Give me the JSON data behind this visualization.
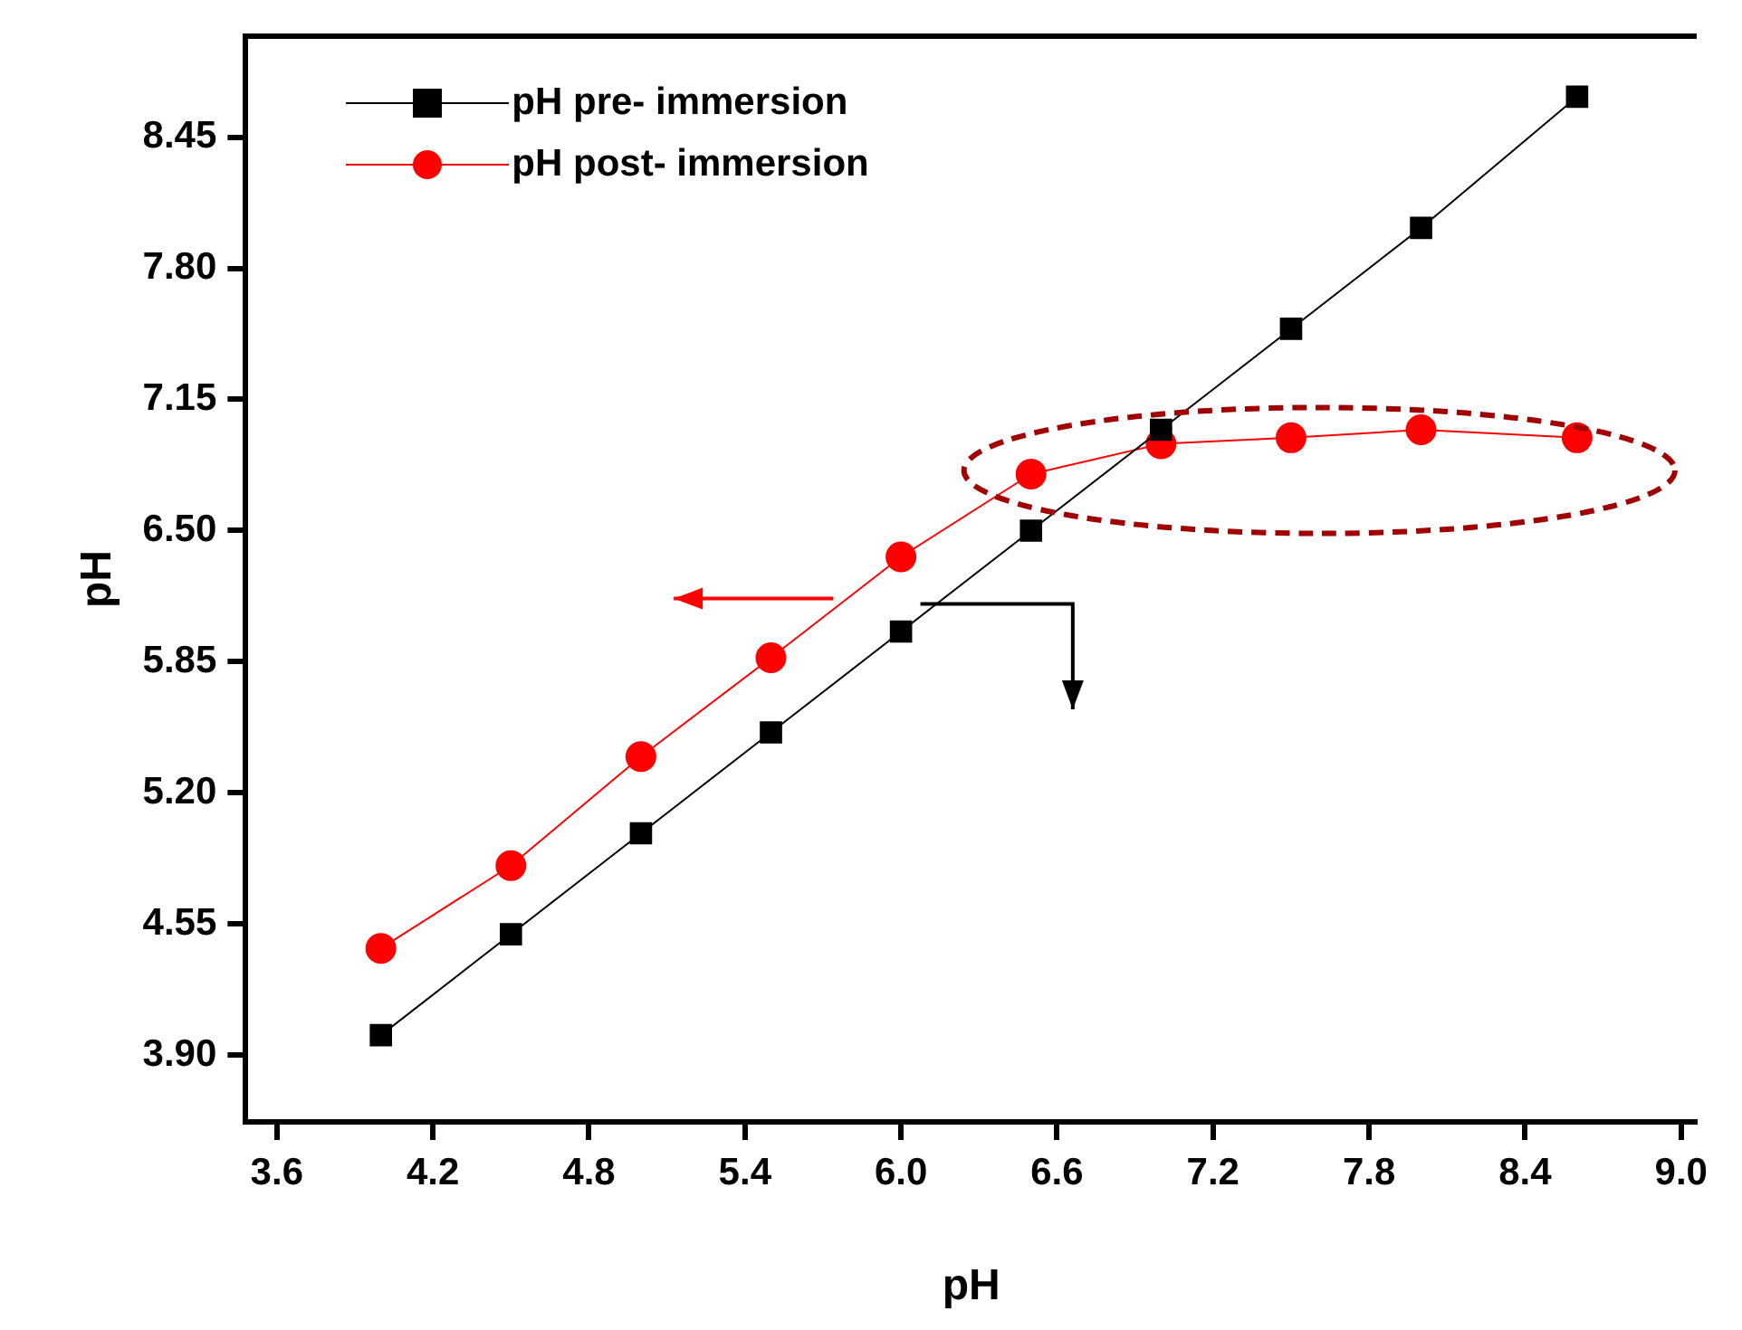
{
  "chart_data": {
    "type": "line",
    "xlabel": "pH",
    "ylabel": "pH",
    "x": [
      4.0,
      4.5,
      5.0,
      5.5,
      6.0,
      6.5,
      7.0,
      7.5,
      8.0,
      8.6
    ],
    "series": [
      {
        "name": "pH pre- immersion",
        "color": "#000000",
        "marker": "square",
        "values": [
          4.0,
          4.5,
          5.0,
          5.5,
          6.0,
          6.5,
          7.0,
          7.5,
          8.0,
          8.65
        ]
      },
      {
        "name": "pH post- immersion",
        "color": "#ff0000",
        "marker": "circle",
        "values": [
          4.43,
          4.84,
          5.38,
          5.87,
          6.37,
          6.78,
          6.93,
          6.96,
          7.0,
          6.96
        ]
      }
    ],
    "xlim": [
      3.48,
      9.06
    ],
    "xticks": [
      3.6,
      4.2,
      4.8,
      5.4,
      {
        "value": 6,
        "label": "6.0"
      },
      6.6,
      7.2,
      7.8,
      8.4,
      {
        "value": 9,
        "label": "9.0"
      }
    ],
    "ylim": [
      3.57,
      8.95
    ],
    "yticks": [
      {
        "value": 3.9,
        "label": "3.90"
      },
      4.55,
      {
        "value": 5.2,
        "label": "5.20"
      },
      5.85,
      {
        "value": 6.5,
        "label": "6.50"
      },
      7.15,
      {
        "value": 7.8,
        "label": "7.80"
      },
      8.45
    ],
    "grid": false,
    "legend": "top left",
    "line_style": "solid"
  }
}
